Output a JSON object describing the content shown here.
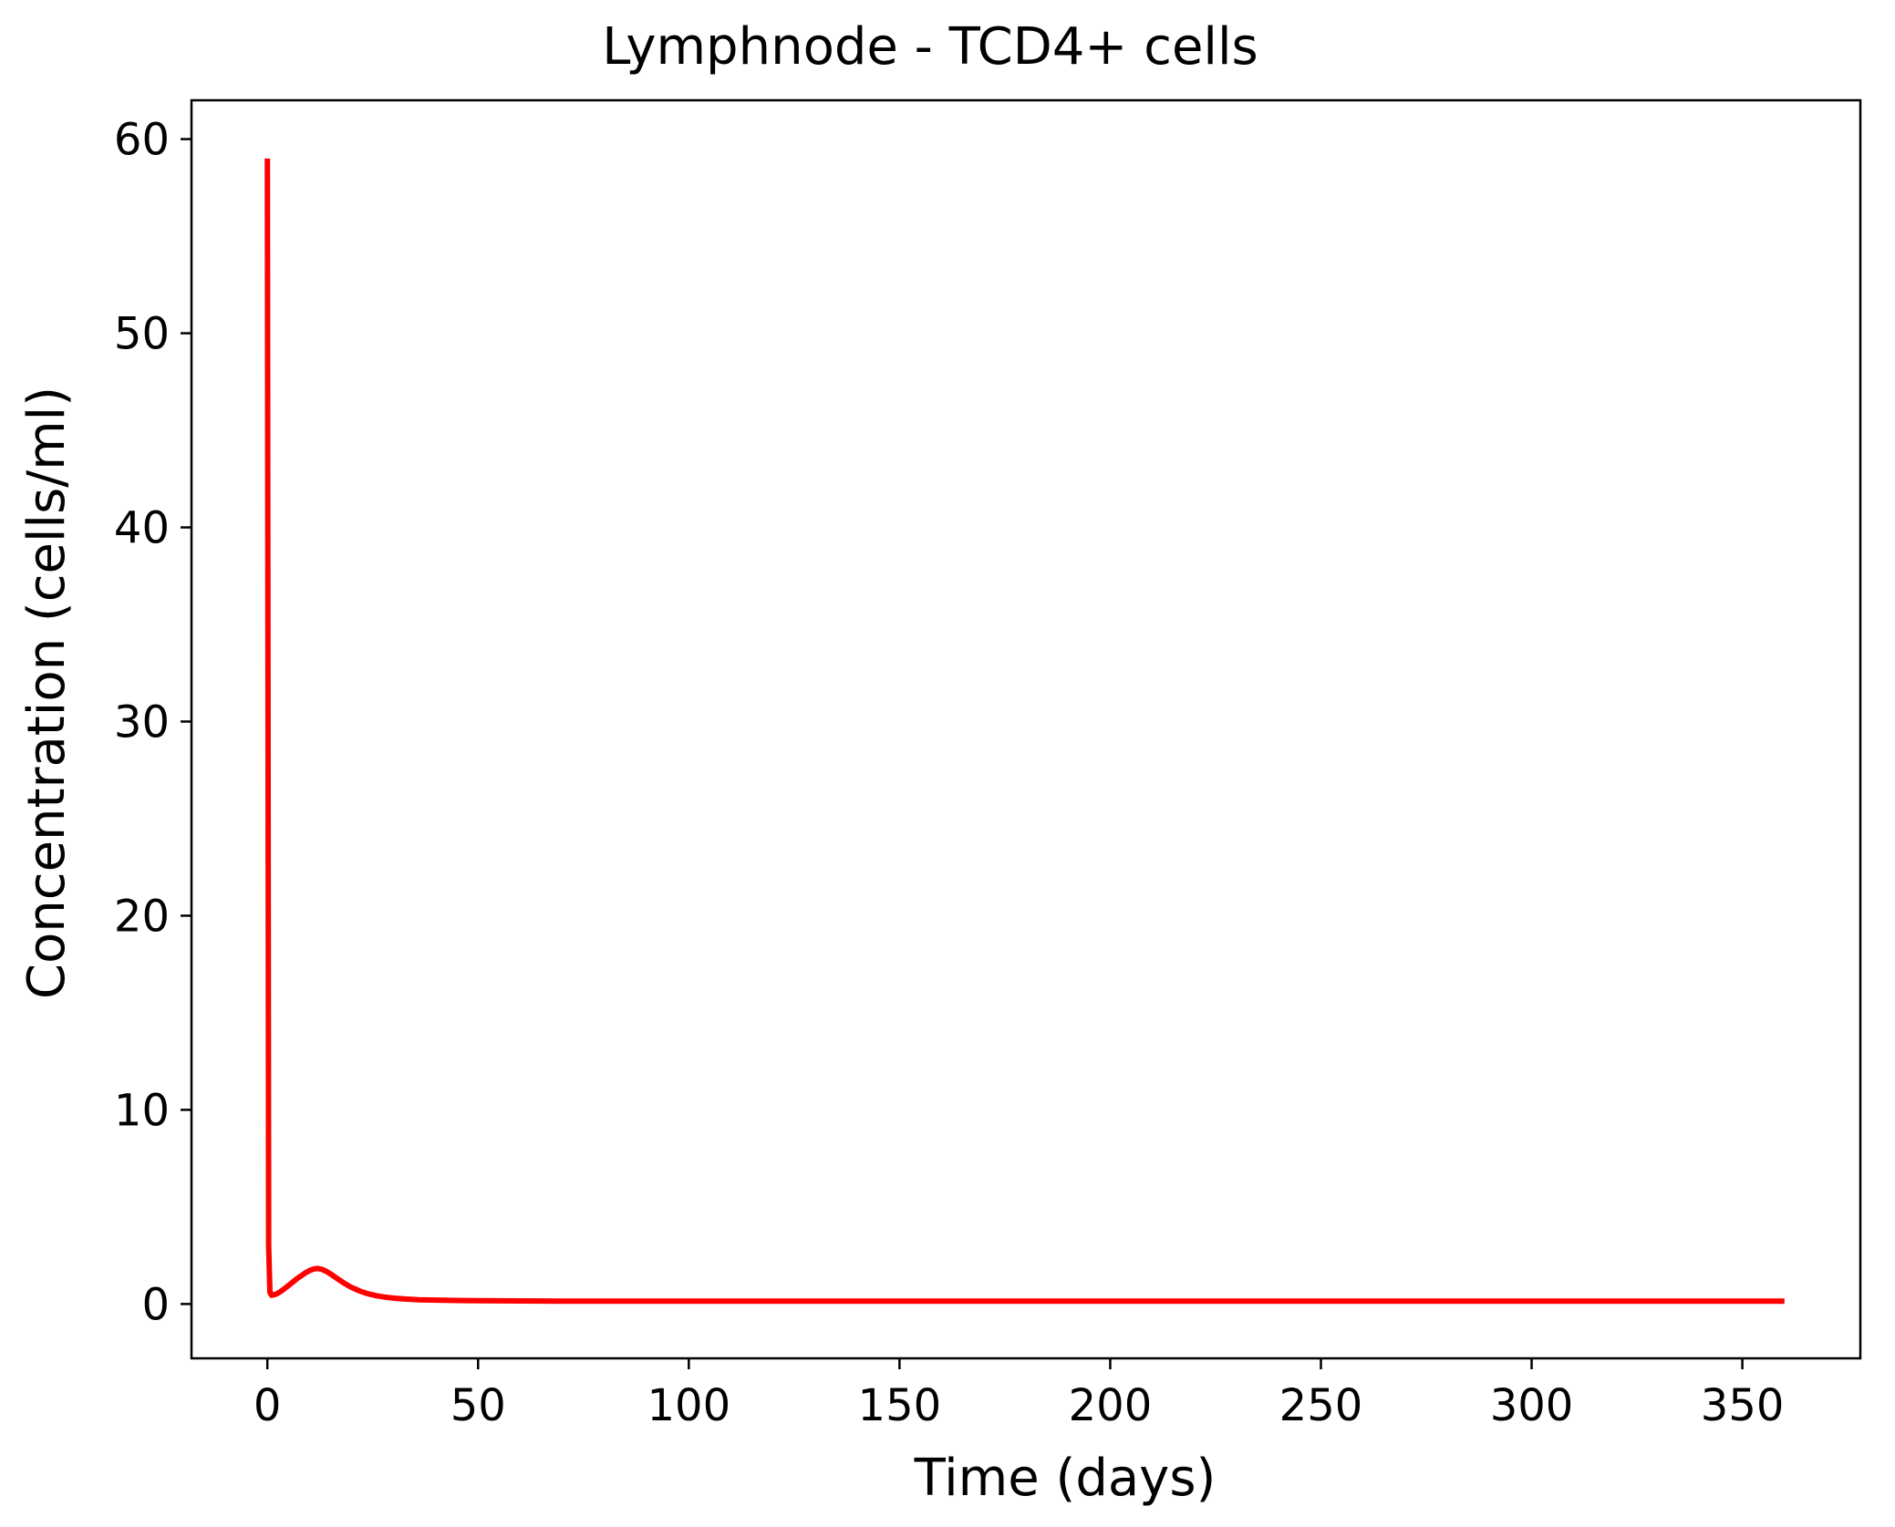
{
  "chart_data": {
    "type": "line",
    "title": "Lymphnode - TCD4+ cells",
    "xlabel": "Time (days)",
    "ylabel": "Concentration (cells/ml)",
    "xlim": [
      -18,
      378
    ],
    "ylim": [
      -2.8,
      62
    ],
    "xticks": [
      0,
      50,
      100,
      150,
      200,
      250,
      300,
      350
    ],
    "yticks": [
      0,
      10,
      20,
      30,
      40,
      50,
      60
    ],
    "grid": false,
    "legend": "none",
    "series": [
      {
        "color": "#ff0000",
        "x": [
          0,
          0.3,
          0.6,
          1,
          2,
          3,
          4,
          5,
          6,
          7,
          8,
          9,
          10,
          11,
          12,
          13,
          14,
          15,
          16,
          17,
          18,
          19,
          20,
          22,
          24,
          26,
          28,
          30,
          33,
          36,
          40,
          45,
          50,
          60,
          70,
          80,
          100,
          150,
          200,
          250,
          300,
          360
        ],
        "y": [
          59,
          3.0,
          0.6,
          0.45,
          0.5,
          0.62,
          0.78,
          0.95,
          1.12,
          1.3,
          1.45,
          1.6,
          1.72,
          1.8,
          1.83,
          1.78,
          1.68,
          1.55,
          1.4,
          1.25,
          1.1,
          0.97,
          0.85,
          0.66,
          0.52,
          0.42,
          0.35,
          0.3,
          0.25,
          0.22,
          0.2,
          0.18,
          0.17,
          0.16,
          0.15,
          0.15,
          0.15,
          0.15,
          0.15,
          0.15,
          0.15,
          0.15
        ]
      }
    ]
  }
}
